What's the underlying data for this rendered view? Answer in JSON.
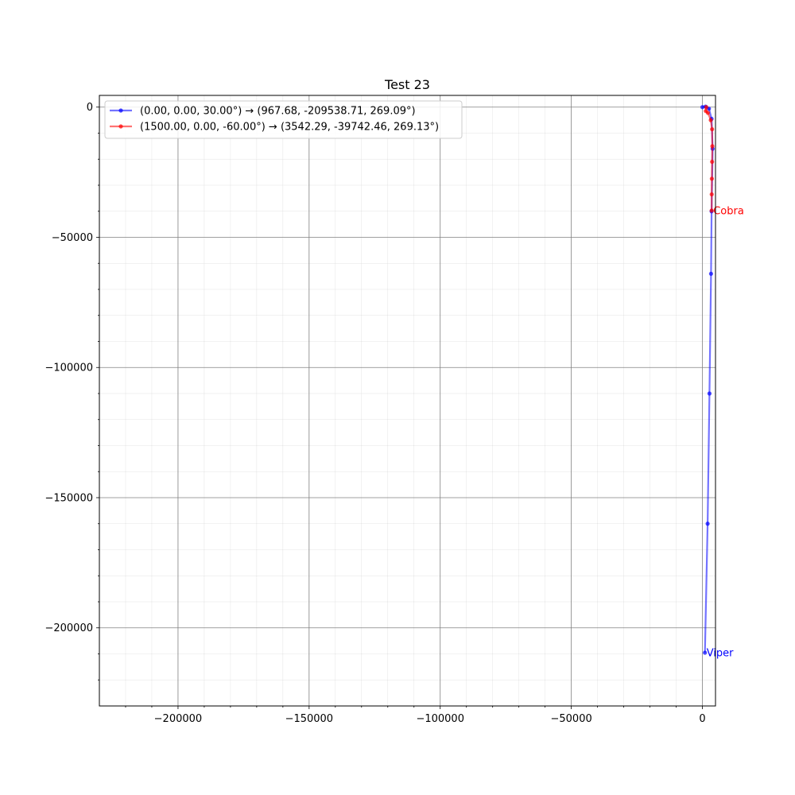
{
  "chart_data": {
    "type": "line",
    "title": "Test 23",
    "xlabel": "",
    "ylabel": "",
    "xlim": [
      -230000,
      5000
    ],
    "ylim": [
      -230000,
      4500
    ],
    "grid": true,
    "minor_grid": true,
    "legend_position": "upper-left",
    "x_ticks": [
      {
        "value": -200000,
        "label": "−200000"
      },
      {
        "value": -150000,
        "label": "−150000"
      },
      {
        "value": -100000,
        "label": "−100000"
      },
      {
        "value": -50000,
        "label": "−50000"
      },
      {
        "value": 0,
        "label": "0"
      }
    ],
    "y_ticks": [
      {
        "value": 0,
        "label": "0"
      },
      {
        "value": -50000,
        "label": "−50000"
      },
      {
        "value": -100000,
        "label": "−100000"
      },
      {
        "value": -150000,
        "label": "−150000"
      },
      {
        "value": -200000,
        "label": "−200000"
      }
    ],
    "series": [
      {
        "name": "(0.00, 0.00, 30.00°) → (967.68, -209538.71, 269.09°)",
        "color": "#0000ff",
        "end_label": "Viper",
        "points": [
          {
            "x": 0,
            "y": 0
          },
          {
            "x": 1200,
            "y": 200
          },
          {
            "x": 2500,
            "y": -600
          },
          {
            "x": 3500,
            "y": -4500
          },
          {
            "x": 3900,
            "y": -16000
          },
          {
            "x": 3500,
            "y": -40000
          },
          {
            "x": 3300,
            "y": -64000
          },
          {
            "x": 2700,
            "y": -110000
          },
          {
            "x": 2000,
            "y": -160000
          },
          {
            "x": 967.68,
            "y": -209538.71
          }
        ]
      },
      {
        "name": "(1500.00, 0.00, -60.00°) → (3542.29, -39742.46, 269.13°)",
        "color": "#ff0000",
        "end_label": "Cobra",
        "points": [
          {
            "x": 1500,
            "y": 0
          },
          {
            "x": 1300,
            "y": -1500
          },
          {
            "x": 2100,
            "y": -2200
          },
          {
            "x": 3200,
            "y": -5000
          },
          {
            "x": 3700,
            "y": -8500
          },
          {
            "x": 3800,
            "y": -15000
          },
          {
            "x": 3700,
            "y": -21000
          },
          {
            "x": 3600,
            "y": -27500
          },
          {
            "x": 3550,
            "y": -33500
          },
          {
            "x": 3542.29,
            "y": -39742.46
          }
        ]
      }
    ]
  }
}
